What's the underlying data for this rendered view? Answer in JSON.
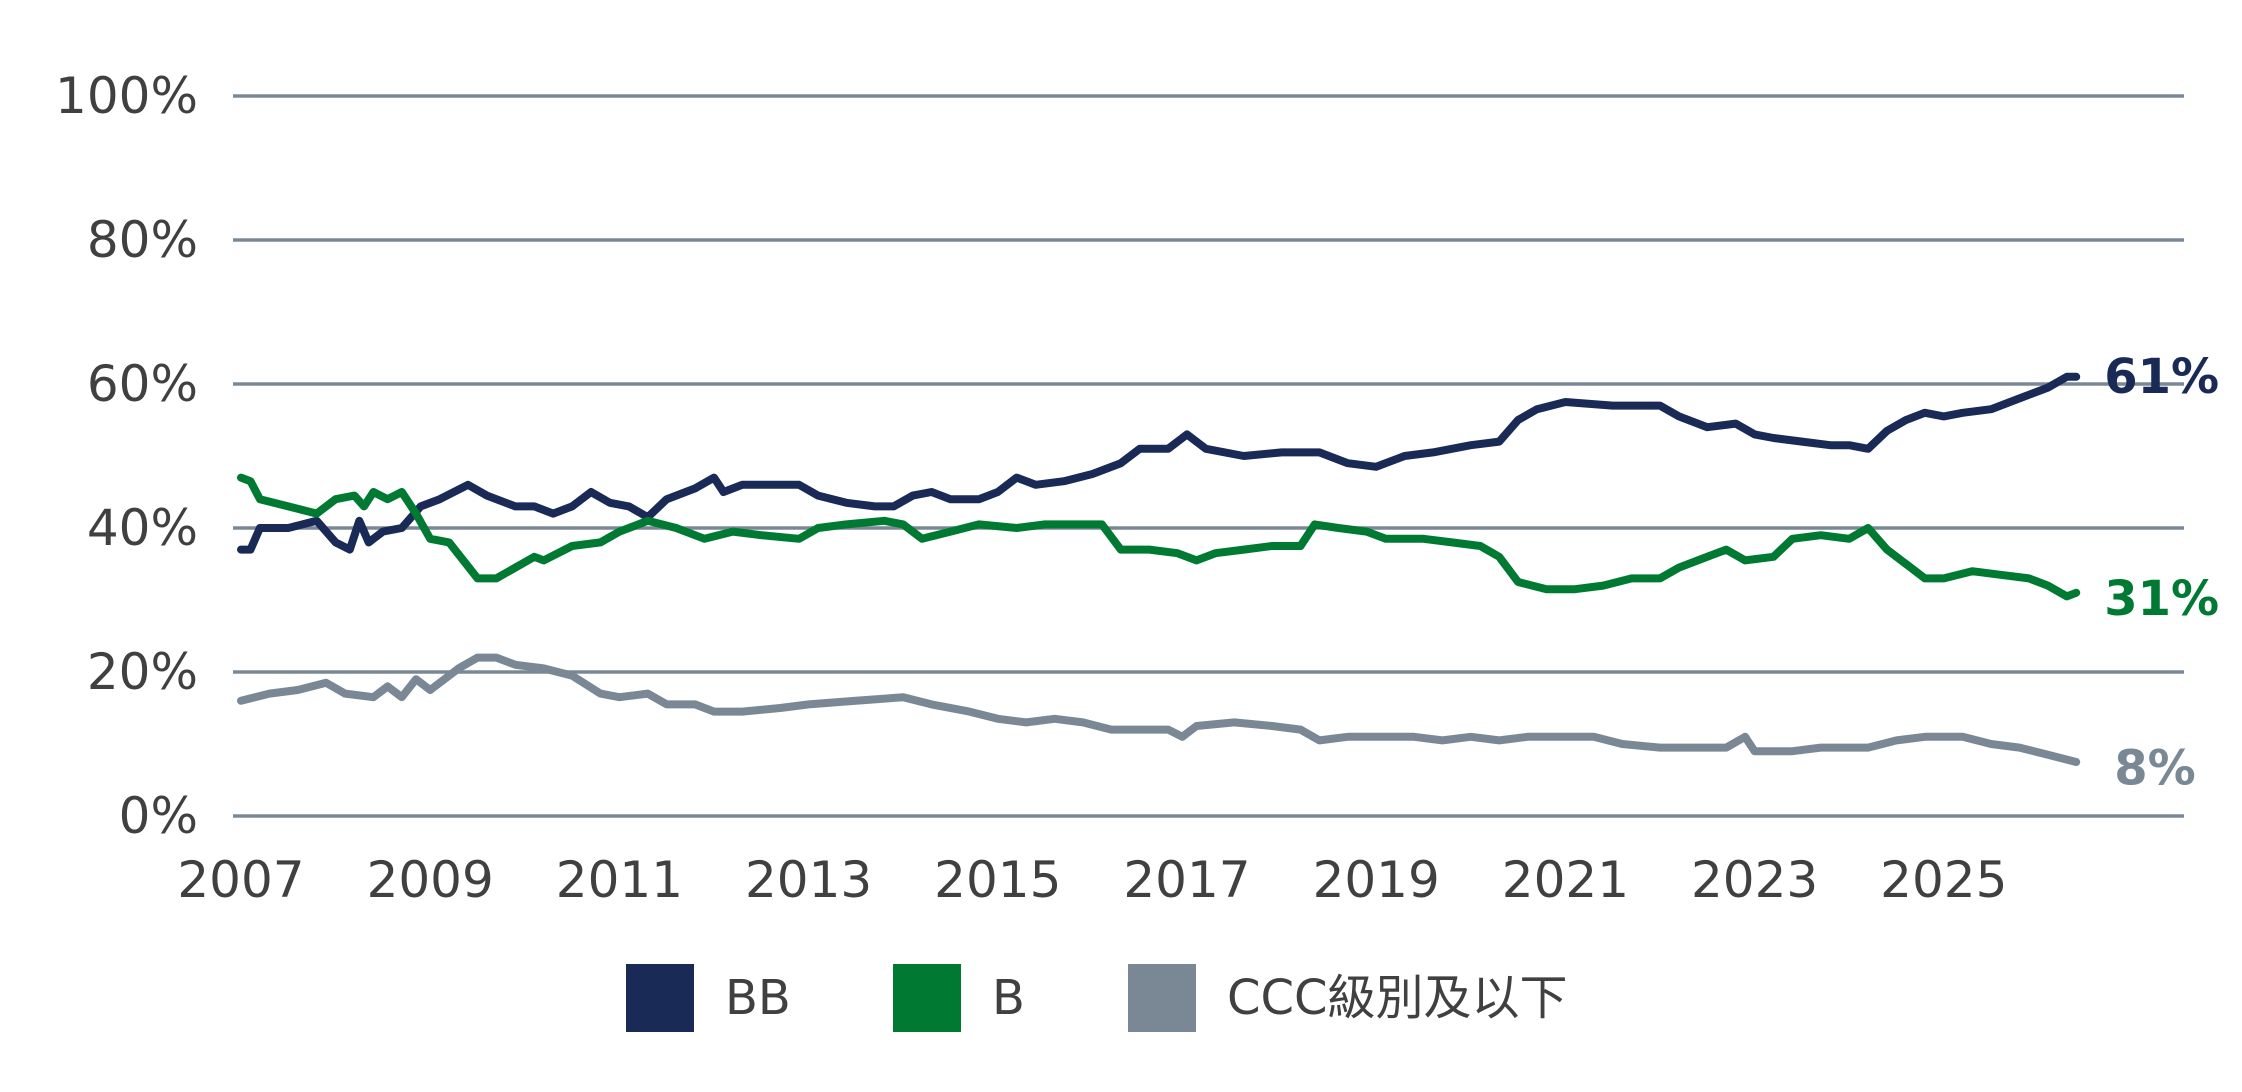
{
  "chart_data": {
    "type": "line",
    "title": "",
    "xlabel": "",
    "ylabel": "",
    "xlim": [
      2007,
      2027.2
    ],
    "ylim": [
      0,
      100
    ],
    "grid": "horizontal",
    "legend_placement": "bottom",
    "y_ticks": [
      0,
      20,
      40,
      60,
      80,
      100
    ],
    "y_tick_labels": [
      "0%",
      "20%",
      "40%",
      "60%",
      "80%",
      "100%"
    ],
    "x_ticks": [
      2007,
      2009,
      2011,
      2013,
      2015,
      2017,
      2019,
      2021,
      2023,
      2025
    ],
    "x_tick_labels": [
      "2007",
      "2009",
      "2011",
      "2013",
      "2015",
      "2017",
      "2019",
      "2021",
      "2023",
      "2025"
    ],
    "colors": {
      "grid": "#7a8896",
      "text": "#404040"
    },
    "series": [
      {
        "name": "BB",
        "color": "#1a2a57",
        "end_label": "61%",
        "x": [
          2007.0,
          2007.1,
          2007.2,
          2007.5,
          2007.8,
          2008.0,
          2008.15,
          2008.25,
          2008.35,
          2008.5,
          2008.7,
          2008.9,
          2009.1,
          2009.4,
          2009.6,
          2009.9,
          2010.1,
          2010.3,
          2010.5,
          2010.7,
          2010.9,
          2011.1,
          2011.3,
          2011.5,
          2011.8,
          2012.0,
          2012.1,
          2012.3,
          2012.6,
          2012.9,
          2013.1,
          2013.4,
          2013.7,
          2013.9,
          2014.1,
          2014.3,
          2014.5,
          2014.8,
          2015.0,
          2015.2,
          2015.4,
          2015.7,
          2016.0,
          2016.3,
          2016.5,
          2016.8,
          2017.0,
          2017.2,
          2017.6,
          2018.0,
          2018.4,
          2018.7,
          2019.0,
          2019.3,
          2019.6,
          2020.0,
          2020.3,
          2020.5,
          2020.7,
          2021.0,
          2021.5,
          2021.8,
          2022.0,
          2022.2,
          2022.5,
          2022.8,
          2023.0,
          2023.2,
          2023.5,
          2023.8,
          2024.0,
          2024.2,
          2024.4,
          2024.6,
          2024.8,
          2025.0,
          2025.2,
          2025.5,
          2025.8,
          2026.1,
          2026.3,
          2026.4
        ],
        "y": [
          37,
          37,
          40,
          40,
          41,
          38,
          37,
          41,
          38,
          39.5,
          40,
          43,
          44,
          46,
          44.5,
          43,
          43,
          42,
          43,
          45,
          43.5,
          43,
          41.5,
          44,
          45.5,
          47,
          45,
          46,
          46,
          46,
          44.5,
          43.5,
          43,
          43,
          44.5,
          45,
          44,
          44,
          45,
          47,
          46,
          46.5,
          47.5,
          49,
          51,
          51,
          53,
          51,
          50,
          50.5,
          50.5,
          49,
          48.5,
          50,
          50.5,
          51.5,
          52,
          55,
          56.5,
          57.5,
          57,
          57,
          57,
          55.5,
          54,
          54.5,
          53,
          52.5,
          52,
          51.5,
          51.5,
          51,
          53.5,
          55,
          56,
          55.5,
          56,
          56.5,
          58,
          59.5,
          61,
          61
        ]
      },
      {
        "name": "B",
        "color": "#007a33",
        "end_label": "31%",
        "x": [
          2007.0,
          2007.1,
          2007.2,
          2007.5,
          2007.8,
          2008.0,
          2008.2,
          2008.3,
          2008.4,
          2008.55,
          2008.7,
          2008.85,
          2009.0,
          2009.2,
          2009.5,
          2009.7,
          2009.9,
          2010.1,
          2010.2,
          2010.5,
          2010.8,
          2011.0,
          2011.3,
          2011.6,
          2011.9,
          2012.2,
          2012.5,
          2012.9,
          2013.1,
          2013.4,
          2013.8,
          2014.0,
          2014.2,
          2014.5,
          2014.8,
          2015.2,
          2015.5,
          2015.9,
          2016.1,
          2016.3,
          2016.6,
          2016.9,
          2017.1,
          2017.3,
          2017.6,
          2017.9,
          2018.2,
          2018.35,
          2018.6,
          2018.9,
          2019.1,
          2019.5,
          2019.8,
          2020.1,
          2020.3,
          2020.5,
          2020.8,
          2021.1,
          2021.4,
          2021.7,
          2022.0,
          2022.2,
          2022.5,
          2022.7,
          2022.9,
          2023.2,
          2023.4,
          2023.7,
          2024.0,
          2024.2,
          2024.4,
          2024.6,
          2024.8,
          2025.0,
          2025.3,
          2025.6,
          2025.9,
          2026.1,
          2026.3,
          2026.4
        ],
        "y": [
          47,
          46.5,
          44,
          43,
          42,
          44,
          44.5,
          43,
          45,
          44,
          45,
          42,
          38.5,
          38,
          33,
          33,
          34.5,
          36,
          35.5,
          37.5,
          38,
          39.5,
          41,
          40,
          38.5,
          39.5,
          39,
          38.5,
          40,
          40.5,
          41,
          40.5,
          38.5,
          39.5,
          40.5,
          40,
          40.5,
          40.5,
          40.5,
          37,
          37,
          36.5,
          35.5,
          36.5,
          37,
          37.5,
          37.5,
          40.5,
          40,
          39.5,
          38.5,
          38.5,
          38,
          37.5,
          36,
          32.5,
          31.5,
          31.5,
          32,
          33,
          33,
          34.5,
          36,
          37,
          35.5,
          36,
          38.5,
          39,
          38.5,
          40,
          37,
          35,
          33,
          33,
          34,
          33.5,
          33,
          32,
          30.5,
          31
        ]
      },
      {
        "name": "CCC級別及以下",
        "color": "#7a8896",
        "end_label": "8%",
        "x": [
          2007.0,
          2007.3,
          2007.6,
          2007.9,
          2008.1,
          2008.4,
          2008.55,
          2008.7,
          2008.85,
          2009.0,
          2009.3,
          2009.5,
          2009.7,
          2009.9,
          2010.2,
          2010.5,
          2010.8,
          2011.0,
          2011.3,
          2011.5,
          2011.8,
          2012.0,
          2012.3,
          2012.7,
          2013.0,
          2013.5,
          2014.0,
          2014.3,
          2014.7,
          2015.0,
          2015.3,
          2015.6,
          2015.9,
          2016.2,
          2016.5,
          2016.8,
          2016.95,
          2017.1,
          2017.5,
          2017.9,
          2018.2,
          2018.4,
          2018.7,
          2019.0,
          2019.4,
          2019.7,
          2020.0,
          2020.3,
          2020.6,
          2021.0,
          2021.3,
          2021.6,
          2022.0,
          2022.3,
          2022.7,
          2022.9,
          2023.0,
          2023.4,
          2023.7,
          2024.0,
          2024.2,
          2024.5,
          2024.8,
          2025.2,
          2025.5,
          2025.8,
          2026.1,
          2026.4
        ],
        "y": [
          16,
          17,
          17.5,
          18.5,
          17,
          16.5,
          18,
          16.5,
          19,
          17.5,
          20.5,
          22,
          22,
          21,
          20.5,
          19.5,
          17,
          16.5,
          17,
          15.5,
          15.5,
          14.5,
          14.5,
          15,
          15.5,
          16,
          16.5,
          15.5,
          14.5,
          13.5,
          13,
          13.5,
          13,
          12,
          12,
          12,
          11,
          12.5,
          13,
          12.5,
          12,
          10.5,
          11,
          11,
          11,
          10.5,
          11,
          10.5,
          11,
          11,
          11,
          10,
          9.5,
          9.5,
          9.5,
          11,
          9,
          9,
          9.5,
          9.5,
          9.5,
          10.5,
          11,
          11,
          10,
          9.5,
          8.5,
          7.5
        ]
      }
    ]
  }
}
